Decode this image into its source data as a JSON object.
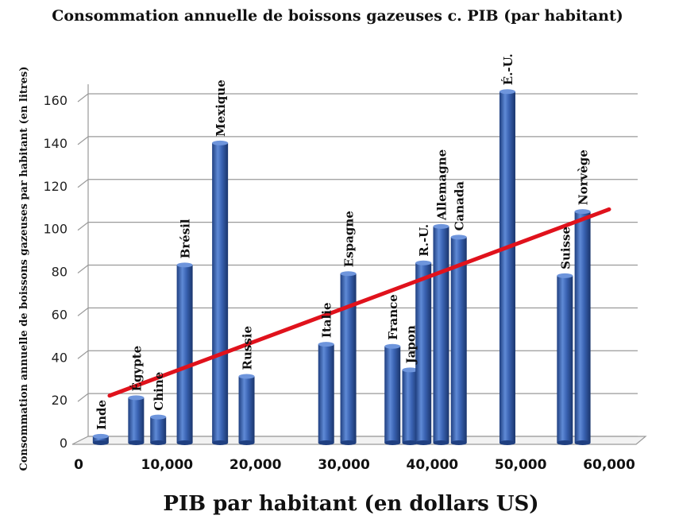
{
  "chart_data": {
    "type": "bar",
    "title": "Consommation annuelle de boissons gazeuses c. PIB (par habitant)",
    "xlabel": "PIB par habitant (en dollars US)",
    "ylabel": "Consommation annuelle de boissons gazeuses par habitant (en litres)",
    "xlim": [
      0,
      60000
    ],
    "ylim": [
      0,
      160
    ],
    "x_ticks": [
      "0",
      "10,000",
      "20,000",
      "30,000",
      "40,000",
      "50,000",
      "60,000"
    ],
    "y_ticks": [
      "0",
      "20",
      "40",
      "60",
      "80",
      "100",
      "120",
      "140",
      "160"
    ],
    "grid": true,
    "bar_color": "#3a63b3",
    "trend_color": "#e0121c",
    "series": [
      {
        "values": [
          {
            "label": "Inde",
            "x": 2500,
            "y": 3
          },
          {
            "label": "Égypte",
            "x": 6500,
            "y": 21
          },
          {
            "label": "Chine",
            "x": 9000,
            "y": 12
          },
          {
            "label": "Brésil",
            "x": 12000,
            "y": 83
          },
          {
            "label": "Mexique",
            "x": 16000,
            "y": 140
          },
          {
            "label": "Russie",
            "x": 19000,
            "y": 31
          },
          {
            "label": "Italie",
            "x": 28000,
            "y": 46
          },
          {
            "label": "Espagne",
            "x": 30500,
            "y": 79
          },
          {
            "label": "France",
            "x": 35500,
            "y": 45
          },
          {
            "label": "Japon",
            "x": 37500,
            "y": 34
          },
          {
            "label": "R.-U.",
            "x": 39000,
            "y": 84
          },
          {
            "label": "Allemagne",
            "x": 41000,
            "y": 101
          },
          {
            "label": "Canada",
            "x": 43000,
            "y": 96
          },
          {
            "label": "É.-U.",
            "x": 48500,
            "y": 164
          },
          {
            "label": "Suisse",
            "x": 55000,
            "y": 78
          },
          {
            "label": "Norvège",
            "x": 57000,
            "y": 108
          }
        ]
      }
    ],
    "trendline": {
      "x": [
        3500,
        60000
      ],
      "y": [
        22,
        109
      ]
    }
  }
}
